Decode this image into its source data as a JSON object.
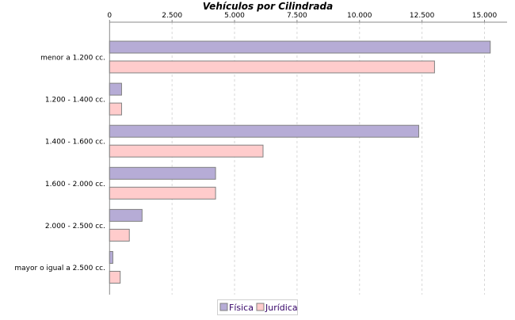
{
  "chart_data": {
    "type": "bar",
    "orientation": "horizontal",
    "title": "Vehículos por Cilindrada",
    "categories": [
      "menor a 1.200 cc.",
      "1.200 - 1.400 cc.",
      "1.400 - 1.600 cc.",
      "1.600 - 2.000 cc.",
      "2.000 - 2.500 cc.",
      "mayor o igual a 2.500 cc."
    ],
    "series": [
      {
        "name": "Física",
        "color": "#b6acd6",
        "values": [
          15230,
          480,
          12370,
          4240,
          1300,
          130
        ]
      },
      {
        "name": "Jurídica",
        "color": "#ffcccc",
        "values": [
          13000,
          480,
          6140,
          4240,
          790,
          425
        ]
      }
    ],
    "xlim": [
      0,
      15800
    ],
    "ticks": [
      0,
      2500,
      5000,
      7500,
      10000,
      12500,
      15000
    ],
    "tick_labels": [
      "0",
      "2.500",
      "5.000",
      "7.500",
      "10.000",
      "12.500",
      "15.000"
    ],
    "axis_position": "top",
    "grid": true,
    "legend": "bottom"
  }
}
